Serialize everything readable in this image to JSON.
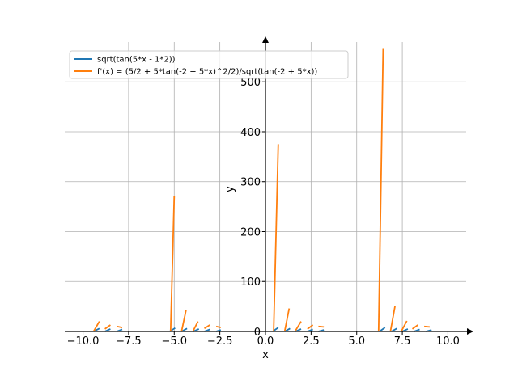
{
  "chart_data": {
    "type": "line",
    "xlabel": "x",
    "ylabel": "y",
    "xlim": [
      -11,
      11
    ],
    "ylim": [
      0,
      570
    ],
    "grid": true,
    "legend_position": "top-left",
    "x_ticks": [
      -10.0,
      -7.5,
      -5.0,
      -2.5,
      0.0,
      2.5,
      5.0,
      7.5,
      10.0
    ],
    "x_tick_labels": [
      "−10.0",
      "−7.5",
      "−5.0",
      "−2.5",
      "0.0",
      "2.5",
      "5.0",
      "7.5",
      "10.0"
    ],
    "y_ticks": [
      0,
      100,
      200,
      300,
      400,
      500
    ],
    "y_tick_labels": [
      "0",
      "100",
      "200",
      "300",
      "400",
      "500"
    ],
    "series": [
      {
        "name": "sqrt(tan(5*x - 1*2))",
        "color": "#1f77b4",
        "segments": [
          [
            [
              -9.42,
              0
            ],
            [
              -9.1,
              6
            ]
          ],
          [
            [
              -8.8,
              0
            ],
            [
              -8.5,
              5
            ]
          ],
          [
            [
              -8.15,
              0
            ],
            [
              -7.85,
              4
            ]
          ],
          [
            [
              -5.25,
              0
            ],
            [
              -4.95,
              7
            ]
          ],
          [
            [
              -4.6,
              0
            ],
            [
              -4.3,
              6
            ]
          ],
          [
            [
              -3.95,
              0
            ],
            [
              -3.65,
              5
            ]
          ],
          [
            [
              -3.35,
              0
            ],
            [
              -3.05,
              4
            ]
          ],
          [
            [
              -2.7,
              0
            ],
            [
              -2.45,
              3
            ]
          ],
          [
            [
              0.4,
              0
            ],
            [
              0.7,
              8
            ]
          ],
          [
            [
              1.05,
              0
            ],
            [
              1.35,
              6
            ]
          ],
          [
            [
              1.65,
              0
            ],
            [
              1.95,
              5
            ]
          ],
          [
            [
              2.3,
              0
            ],
            [
              2.6,
              4
            ]
          ],
          [
            [
              2.9,
              0
            ],
            [
              3.2,
              3
            ]
          ],
          [
            [
              6.25,
              0
            ],
            [
              6.55,
              8
            ]
          ],
          [
            [
              6.9,
              0
            ],
            [
              7.2,
              6
            ]
          ],
          [
            [
              7.5,
              0
            ],
            [
              7.8,
              5
            ]
          ],
          [
            [
              8.15,
              0
            ],
            [
              8.45,
              4
            ]
          ],
          [
            [
              8.8,
              0
            ],
            [
              9.1,
              3
            ]
          ]
        ]
      },
      {
        "name": "f'(x) = (5/2 + 5*tan(-2 + 5*x)^2/2)/sqrt(tan(-2 + 5*x))",
        "color": "#ff7f0e",
        "segments": [
          [
            [
              -9.42,
              0
            ],
            [
              -9.1,
              20
            ]
          ],
          [
            [
              -8.8,
              5
            ],
            [
              -8.5,
              13
            ]
          ],
          [
            [
              -8.15,
              10
            ],
            [
              -7.85,
              8
            ]
          ],
          [
            [
              -5.2,
              0
            ],
            [
              -5.0,
              272
            ]
          ],
          [
            [
              -4.6,
              0
            ],
            [
              -4.35,
              43
            ]
          ],
          [
            [
              -3.95,
              2
            ],
            [
              -3.7,
              20
            ]
          ],
          [
            [
              -3.35,
              6
            ],
            [
              -3.05,
              13
            ]
          ],
          [
            [
              -2.7,
              10
            ],
            [
              -2.45,
              8
            ]
          ],
          [
            [
              0.45,
              0
            ],
            [
              0.7,
              375
            ]
          ],
          [
            [
              1.05,
              0
            ],
            [
              1.3,
              46
            ]
          ],
          [
            [
              1.65,
              2
            ],
            [
              1.95,
              20
            ]
          ],
          [
            [
              2.3,
              5
            ],
            [
              2.6,
              13
            ]
          ],
          [
            [
              2.9,
              10
            ],
            [
              3.2,
              9
            ]
          ],
          [
            [
              6.2,
              0
            ],
            [
              6.45,
              566
            ]
          ],
          [
            [
              6.85,
              0
            ],
            [
              7.1,
              51
            ]
          ],
          [
            [
              7.45,
              1
            ],
            [
              7.75,
              21
            ]
          ],
          [
            [
              8.05,
              5
            ],
            [
              8.35,
              13
            ]
          ],
          [
            [
              8.7,
              10
            ],
            [
              9.0,
              9
            ]
          ]
        ]
      }
    ]
  }
}
